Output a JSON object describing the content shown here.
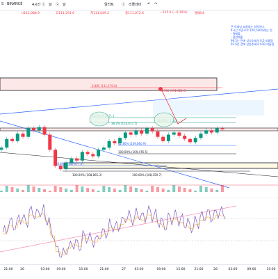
{
  "toolbar": {
    "symbol": "S · BINANCE",
    "items": [
      "4시간",
      "ⓘ",
      "달",
      "ⓥ",
      "달"
    ],
    "right_items": [
      "알러트",
      "ⓘ",
      "리플레이"
    ],
    "undo": "↶",
    "redo": "↷"
  },
  "ohlc": {
    "o": "시111,088.9",
    "h": "고111,291.6",
    "l": "저111,049.2",
    "c": "종111,072.6",
    "chg": "−215.6 (−0.19%)",
    "vol": "볼88.8"
  },
  "notes": [
    "큰 트레닝 흐름세는 하락이다.",
    "4시간 기준으로 100,500아래는 전",
    "- 역배출",
    "- 합연매출",
    "",
    "99.5는 전에 상승추세의 0.5 되돌림",
    "93.6은 전에 상승추세의 61B 되돌림"
  ],
  "fib": [
    {
      "ratio": "0.885 (111,176.8)",
      "color": "#f23645"
    },
    {
      "ratio": "38.2% (110,7...)",
      "color": "#089981"
    },
    {
      "ratio": "50.00% (110,4...)",
      "color": "#089981"
    },
    {
      "ratio": "38.2% (110,617.5)",
      "color": "#089981"
    },
    {
      "ratio": "61.80% (109,860.9)",
      "color": "#2962ff"
    },
    {
      "ratio": "100.00% (109,476.5)",
      "color": "#131722"
    },
    {
      "ratio": "88.60% (109,977.0)",
      "color": "#2962ff"
    },
    {
      "ratio": "100.00% (108,865.3)",
      "color": "#131722"
    },
    {
      "ratio": "0.786 (111,022.6)",
      "color": "#f23645"
    },
    {
      "ratio": "100.00% (108,359.7)",
      "color": "#131722"
    }
  ],
  "xaxis": [
    "21:00",
    "26",
    "03:00",
    "09:00",
    "15:00",
    "21:00",
    "27",
    "03:00",
    "09:00",
    "15:00",
    "21:00",
    "28",
    "03:00",
    "09:00",
    "15:00",
    "21:00",
    "28",
    "03:00",
    "09:00"
  ],
  "colors": {
    "up": "#089981",
    "down": "#f23645",
    "fib_blue": "#2962ff",
    "rsi": "#7e57c2"
  },
  "chart_data": {
    "type": "line",
    "candles_up_color": "#089981",
    "candles_down_color": "#f23645",
    "series": [
      {
        "values": [
          112,
          120,
          118,
          125,
          122,
          130,
          128,
          131,
          124,
          110,
          95,
          92,
          98,
          102,
          100,
          108,
          106,
          104,
          110,
          112,
          118,
          116,
          121,
          126,
          124,
          128,
          125,
          130,
          127,
          122,
          118,
          124,
          126,
          123,
          120,
          117,
          121,
          125,
          128,
          126,
          130,
          129
        ]
      }
    ]
  }
}
